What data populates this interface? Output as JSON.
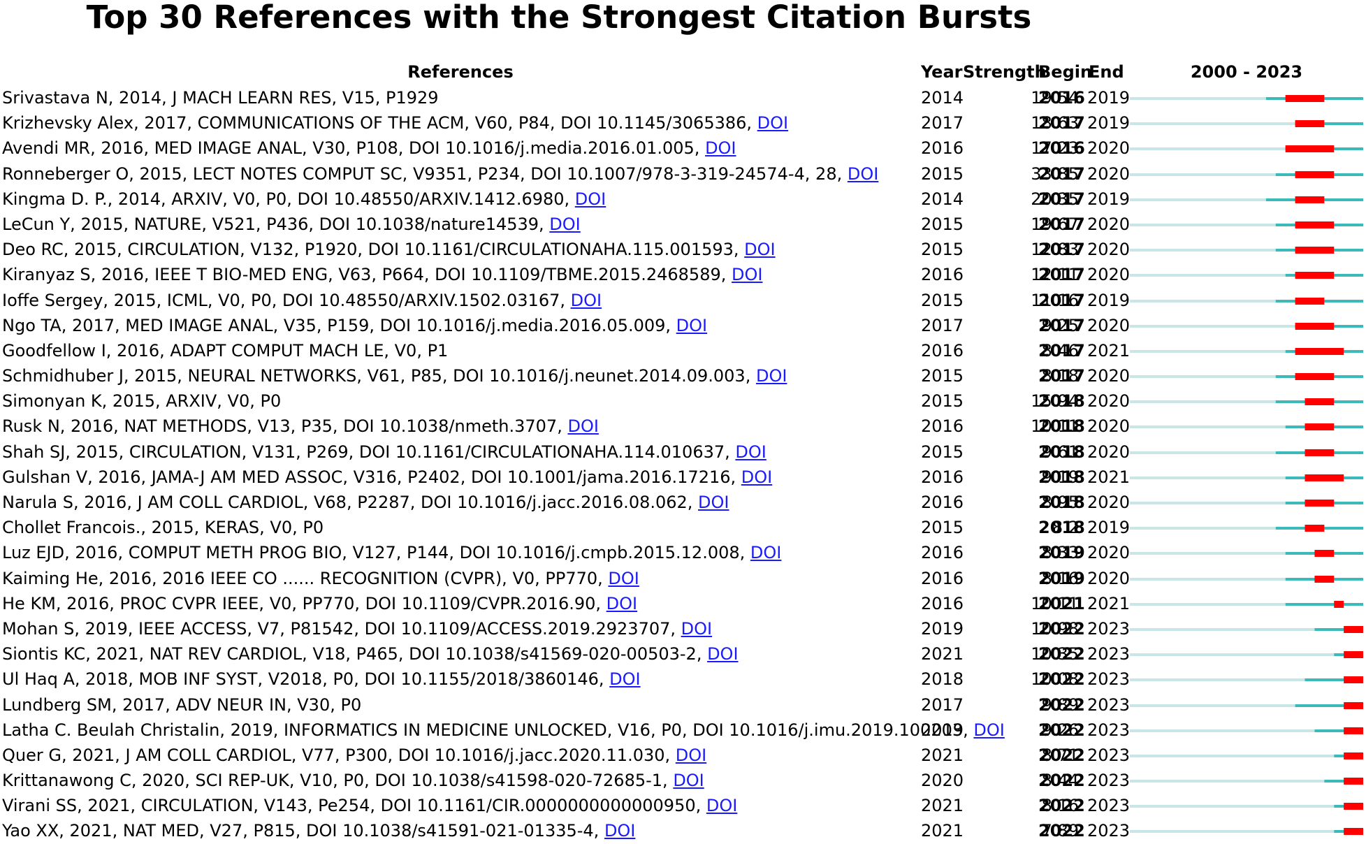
{
  "title": "Top 30 References with the Strongest Citation Bursts",
  "headers": {
    "references": "References",
    "year": "Year",
    "strength": "Strength",
    "begin": "Begin",
    "end": "End",
    "range": "2000 - 2023"
  },
  "colors": {
    "burst": "#ff0000",
    "active": "#3cb9b9",
    "inactive": "#c8e6e6",
    "link": "#1a1aff"
  },
  "chart_data": {
    "type": "table",
    "timeline": {
      "start": 2000,
      "end": 2023
    },
    "columns": [
      "References",
      "Year",
      "Strength",
      "Begin",
      "End"
    ],
    "rows": [
      {
        "ref": "Srivastava N, 2014, J MACH LEARN RES, V15, P1929",
        "doi": "",
        "year": "2014",
        "strength": "19.54",
        "begin": "2016",
        "end": "2019"
      },
      {
        "ref": "Krizhevsky Alex, 2017, COMMUNICATIONS OF THE ACM, V60, P84, DOI 10.1145/3065386, ",
        "doi": "DOI",
        "year": "2017",
        "strength": "18.63",
        "begin": "2017",
        "end": "2019"
      },
      {
        "ref": "Avendi MR, 2016, MED IMAGE ANAL, V30, P108, DOI 10.1016/j.media.2016.01.005, ",
        "doi": "DOI",
        "year": "2016",
        "strength": "17.23",
        "begin": "2016",
        "end": "2020"
      },
      {
        "ref": "Ronneberger O, 2015, LECT NOTES COMPUT SC, V9351, P234, DOI 10.1007/978-3-319-24574-4, 28, ",
        "doi": "DOI",
        "year": "2015",
        "strength": "33.85",
        "begin": "2017",
        "end": "2020"
      },
      {
        "ref": "Kingma D. P., 2014, ARXIV, V0, P0, DOI 10.48550/ARXIV.1412.6980, ",
        "doi": "DOI",
        "year": "2014",
        "strength": "20.35",
        "begin": "2017",
        "end": "2019"
      },
      {
        "ref": "LeCun Y, 2015, NATURE, V521, P436, DOI 10.1038/nature14539, ",
        "doi": "DOI",
        "year": "2015",
        "strength": "19.67",
        "begin": "2017",
        "end": "2020"
      },
      {
        "ref": "Deo RC, 2015, CIRCULATION, V132, P1920, DOI 10.1161/CIRCULATIONAHA.115.001593, ",
        "doi": "DOI",
        "year": "2015",
        "strength": "12.83",
        "begin": "2017",
        "end": "2020"
      },
      {
        "ref": "Kiranyaz S, 2016, IEEE T BIO-MED ENG, V63, P664, DOI 10.1109/TBME.2015.2468589, ",
        "doi": "DOI",
        "year": "2016",
        "strength": "12.11",
        "begin": "2017",
        "end": "2020"
      },
      {
        "ref": "Ioffe Sergey, 2015, ICML, V0, P0, DOI 10.48550/ARXIV.1502.03167, ",
        "doi": "DOI",
        "year": "2015",
        "strength": "11.16",
        "begin": "2017",
        "end": "2019"
      },
      {
        "ref": "Ngo TA, 2017, MED IMAGE ANAL, V35, P159, DOI 10.1016/j.media.2016.05.009, ",
        "doi": "DOI",
        "year": "2017",
        "strength": "9.25",
        "begin": "2017",
        "end": "2020"
      },
      {
        "ref": "Goodfellow I, 2016, ADAPT COMPUT MACH LE, V0, P1",
        "doi": "",
        "year": "2016",
        "strength": "8.46",
        "begin": "2017",
        "end": "2021"
      },
      {
        "ref": "Schmidhuber J, 2015, NEURAL NETWORKS, V61, P85, DOI 10.1016/j.neunet.2014.09.003, ",
        "doi": "DOI",
        "year": "2015",
        "strength": "8.18",
        "begin": "2017",
        "end": "2020"
      },
      {
        "ref": "Simonyan K, 2015, ARXIV, V0, P0",
        "doi": "",
        "year": "2015",
        "strength": "15.94",
        "begin": "2018",
        "end": "2020"
      },
      {
        "ref": "Rusk N, 2016, NAT METHODS, V13, P35, DOI 10.1038/nmeth.3707, ",
        "doi": "DOI",
        "year": "2016",
        "strength": "10.11",
        "begin": "2018",
        "end": "2020"
      },
      {
        "ref": "Shah SJ, 2015, CIRCULATION, V131, P269, DOI 10.1161/CIRCULATIONAHA.114.010637, ",
        "doi": "DOI",
        "year": "2015",
        "strength": "9.61",
        "begin": "2018",
        "end": "2020"
      },
      {
        "ref": "Gulshan V, 2016, JAMA-J AM MED ASSOC, V316, P2402, DOI 10.1001/jama.2016.17216, ",
        "doi": "DOI",
        "year": "2016",
        "strength": "9.19",
        "begin": "2018",
        "end": "2021"
      },
      {
        "ref": "Narula S, 2016, J AM COLL CARDIOL, V68, P2287, DOI 10.1016/j.jacc.2016.08.062, ",
        "doi": "DOI",
        "year": "2016",
        "strength": "8.95",
        "begin": "2018",
        "end": "2020"
      },
      {
        "ref": "Chollet Francois., 2015, KERAS, V0, P0",
        "doi": "",
        "year": "2015",
        "strength": "8.2",
        "begin": "2018",
        "end": "2019"
      },
      {
        "ref": "Luz EJD, 2016, COMPUT METH PROG BIO, V127, P144, DOI 10.1016/j.cmpb.2015.12.008, ",
        "doi": "DOI",
        "year": "2016",
        "strength": "8.33",
        "begin": "2019",
        "end": "2020"
      },
      {
        "ref": "Kaiming He, 2016, 2016 IEEE CO ...... RECOGNITION (CVPR), V0, PP770, ",
        "doi": "DOI",
        "year": "2016",
        "strength": "8.16",
        "begin": "2019",
        "end": "2020"
      },
      {
        "ref": "He KM, 2016, PROC CVPR IEEE, V0, PP770, DOI 10.1109/CVPR.2016.90, ",
        "doi": "DOI",
        "year": "2016",
        "strength": "10.11",
        "begin": "2021",
        "end": "2021"
      },
      {
        "ref": "Mohan S, 2019, IEEE ACCESS, V7, P81542, DOI 10.1109/ACCESS.2019.2923707, ",
        "doi": "DOI",
        "year": "2019",
        "strength": "10.98",
        "begin": "2022",
        "end": "2023"
      },
      {
        "ref": "Siontis KC, 2021, NAT REV CARDIOL, V18, P465, DOI 10.1038/s41569-020-00503-2, ",
        "doi": "DOI",
        "year": "2021",
        "strength": "10.35",
        "begin": "2022",
        "end": "2023"
      },
      {
        "ref": "Ul Haq A, 2018, MOB INF SYST, V2018, P0, DOI 10.1155/2018/3860146, ",
        "doi": "DOI",
        "year": "2018",
        "strength": "10.08",
        "begin": "2022",
        "end": "2023"
      },
      {
        "ref": "Lundberg SM, 2017, ADV NEUR IN, V30, P0",
        "doi": "",
        "year": "2017",
        "strength": "9.89",
        "begin": "2022",
        "end": "2023"
      },
      {
        "ref": "Latha C. Beulah Christalin, 2019, INFORMATICS IN MEDICINE UNLOCKED, V16, P0, DOI 10.1016/j.imu.2019.100203, ",
        "doi": "DOI",
        "year": "2019",
        "strength": "9.26",
        "begin": "2022",
        "end": "2023"
      },
      {
        "ref": "Quer G, 2021, J AM COLL CARDIOL, V77, P300, DOI 10.1016/j.jacc.2020.11.030, ",
        "doi": "DOI",
        "year": "2021",
        "strength": "8.71",
        "begin": "2022",
        "end": "2023"
      },
      {
        "ref": "Krittanawong C, 2020, SCI REP-UK, V10, P0, DOI 10.1038/s41598-020-72685-1, ",
        "doi": "DOI",
        "year": "2020",
        "strength": "8.44",
        "begin": "2022",
        "end": "2023"
      },
      {
        "ref": "Virani SS, 2021, CIRCULATION, V143, Pe254, DOI 10.1161/CIR.0000000000000950, ",
        "doi": "DOI",
        "year": "2021",
        "strength": "8.16",
        "begin": "2022",
        "end": "2023"
      },
      {
        "ref": "Yao XX, 2021, NAT MED, V27, P815, DOI 10.1038/s41591-021-01335-4, ",
        "doi": "DOI",
        "year": "2021",
        "strength": "7.89",
        "begin": "2022",
        "end": "2023"
      }
    ]
  }
}
